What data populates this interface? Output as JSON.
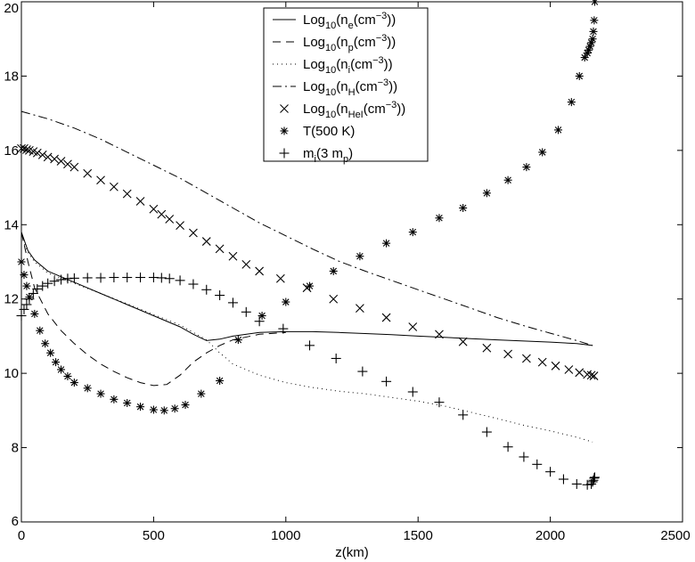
{
  "chart_data": {
    "type": "line",
    "title": "",
    "xlabel": "z(km)",
    "ylabel": "",
    "xlim": [
      0,
      2500
    ],
    "ylim": [
      6,
      20
    ],
    "xticks": [
      0,
      500,
      1000,
      1500,
      2000,
      2500
    ],
    "yticks": [
      6,
      8,
      10,
      12,
      14,
      16,
      18,
      20
    ],
    "grid": false,
    "legend_position": "top-center",
    "series": [
      {
        "name": "Log10(ne(cm-3))",
        "legend": {
          "base": "Log",
          "sub1": "10",
          "mid": "(n",
          "sub2": "e",
          "unit": "(cm",
          "sup": "−3",
          "close": "))"
        },
        "style": "solid",
        "marker": "none",
        "x": [
          0,
          25,
          50,
          100,
          200,
          300,
          400,
          500,
          600,
          650,
          700,
          750,
          800,
          900,
          1000,
          1100,
          1200,
          1300,
          1400,
          1500,
          1600,
          1700,
          1800,
          1900,
          2000,
          2100,
          2160
        ],
        "y": [
          13.8,
          13.3,
          13.05,
          12.75,
          12.45,
          12.15,
          11.85,
          11.55,
          11.25,
          11.05,
          10.88,
          10.92,
          11.0,
          11.1,
          11.12,
          11.12,
          11.1,
          11.07,
          11.04,
          11.0,
          10.97,
          10.93,
          10.9,
          10.87,
          10.84,
          10.8,
          10.75
        ]
      },
      {
        "name": "Log10(np(cm-3))",
        "legend": {
          "base": "Log",
          "sub1": "10",
          "mid": "(n",
          "sub2": "p",
          "unit": "(cm",
          "sup": "−3",
          "close": "))"
        },
        "style": "dashed",
        "marker": "none",
        "x": [
          0,
          25,
          50,
          100,
          150,
          200,
          250,
          300,
          350,
          400,
          450,
          500,
          550,
          600,
          650,
          700,
          750,
          800,
          900,
          1000
        ],
        "y": [
          13.8,
          13.0,
          12.3,
          11.6,
          11.15,
          10.8,
          10.5,
          10.25,
          10.05,
          9.88,
          9.75,
          9.67,
          9.7,
          9.95,
          10.3,
          10.55,
          10.75,
          10.9,
          11.05,
          11.1
        ]
      },
      {
        "name": "Log10(ni(cm-3))",
        "legend": {
          "base": "Log",
          "sub1": "10",
          "mid": "(n",
          "sub2": "i",
          "unit": "(cm",
          "sup": "−3",
          "close": "))"
        },
        "style": "dotted",
        "marker": "none",
        "x": [
          0,
          25,
          50,
          100,
          200,
          300,
          400,
          500,
          600,
          650,
          700,
          750,
          800,
          900,
          1000,
          1100,
          1200,
          1300,
          1400,
          1500,
          1600,
          1700,
          1800,
          1900,
          2000,
          2100,
          2160
        ],
        "y": [
          13.7,
          13.25,
          13.0,
          12.7,
          12.42,
          12.15,
          11.87,
          11.58,
          11.3,
          11.1,
          10.9,
          10.55,
          10.25,
          9.95,
          9.75,
          9.62,
          9.52,
          9.45,
          9.35,
          9.25,
          9.12,
          8.95,
          8.78,
          8.6,
          8.45,
          8.28,
          8.15
        ]
      },
      {
        "name": "Log10(nH(cm-3))",
        "legend": {
          "base": "Log",
          "sub1": "10",
          "mid": "(n",
          "sub2": "H",
          "unit": "(cm",
          "sup": "−3",
          "close": "))"
        },
        "style": "dashdot",
        "marker": "none",
        "x": [
          0,
          100,
          200,
          300,
          400,
          500,
          600,
          700,
          800,
          900,
          1000,
          1100,
          1200,
          1300,
          1400,
          1500,
          1600,
          1700,
          1800,
          1900,
          2000,
          2100,
          2160
        ],
        "y": [
          17.05,
          16.85,
          16.6,
          16.3,
          15.95,
          15.6,
          15.25,
          14.85,
          14.45,
          14.05,
          13.7,
          13.35,
          13.02,
          12.75,
          12.5,
          12.25,
          12.0,
          11.75,
          11.5,
          11.28,
          11.08,
          10.88,
          10.75
        ]
      },
      {
        "name": "Log10(nHeI(cm-3))",
        "legend": {
          "base": "Log",
          "sub1": "10",
          "mid": "(n",
          "sub2": "HeI",
          "unit": "(cm",
          "sup": "−3",
          "close": "))"
        },
        "style": "none",
        "marker": "x",
        "x": [
          0,
          10,
          20,
          30,
          45,
          60,
          80,
          100,
          125,
          150,
          175,
          200,
          250,
          300,
          350,
          400,
          450,
          500,
          530,
          560,
          600,
          650,
          700,
          750,
          800,
          850,
          900,
          980,
          1080,
          1180,
          1280,
          1380,
          1480,
          1580,
          1670,
          1760,
          1840,
          1910,
          1970,
          2020,
          2070,
          2110,
          2140,
          2155,
          2165
        ],
        "y": [
          16.05,
          16.05,
          16.02,
          16.0,
          15.97,
          15.93,
          15.88,
          15.82,
          15.77,
          15.71,
          15.63,
          15.55,
          15.38,
          15.2,
          15.02,
          14.83,
          14.63,
          14.42,
          14.28,
          14.15,
          13.98,
          13.78,
          13.55,
          13.35,
          13.15,
          12.93,
          12.75,
          12.55,
          12.3,
          12.0,
          11.75,
          11.5,
          11.25,
          11.05,
          10.85,
          10.68,
          10.52,
          10.4,
          10.3,
          10.2,
          10.1,
          10.02,
          9.97,
          9.95,
          9.93
        ]
      },
      {
        "name": "T(500 K)",
        "legend": {
          "text": "T(500 K)"
        },
        "style": "none",
        "marker": "asterisk",
        "x": [
          0,
          10,
          20,
          30,
          50,
          70,
          90,
          110,
          130,
          150,
          175,
          200,
          250,
          300,
          350,
          400,
          450,
          500,
          540,
          580,
          620,
          680,
          750,
          820,
          910,
          1000,
          1090,
          1180,
          1280,
          1380,
          1480,
          1580,
          1670,
          1760,
          1840,
          1910,
          1970,
          2030,
          2080,
          2110,
          2130,
          2140,
          2145,
          2150,
          2155,
          2160,
          2163,
          2166,
          2168
        ],
        "y": [
          13.0,
          12.65,
          12.35,
          12.05,
          11.6,
          11.15,
          10.8,
          10.55,
          10.3,
          10.1,
          9.92,
          9.75,
          9.6,
          9.45,
          9.3,
          9.2,
          9.1,
          9.02,
          9.0,
          9.05,
          9.15,
          9.45,
          9.8,
          10.9,
          11.55,
          11.92,
          12.35,
          12.75,
          13.15,
          13.5,
          13.8,
          14.18,
          14.45,
          14.85,
          15.2,
          15.55,
          15.95,
          16.55,
          17.3,
          18.0,
          18.5,
          18.62,
          18.7,
          18.8,
          18.9,
          19.0,
          19.2,
          19.5,
          20.0
        ]
      },
      {
        "name": "mi(3 mp)",
        "legend": {
          "base": "m",
          "sub1": "i",
          "mid": "(3 m",
          "sub2": "p",
          "close": ")"
        },
        "style": "none",
        "marker": "plus",
        "x": [
          0,
          10,
          20,
          30,
          45,
          60,
          80,
          100,
          125,
          150,
          175,
          200,
          250,
          300,
          350,
          400,
          450,
          500,
          530,
          560,
          600,
          650,
          700,
          750,
          800,
          850,
          900,
          990,
          1090,
          1190,
          1290,
          1380,
          1480,
          1580,
          1670,
          1760,
          1840,
          1900,
          1950,
          2000,
          2050,
          2100,
          2140,
          2155,
          2160,
          2163,
          2166,
          2168
        ],
        "y": [
          11.55,
          11.72,
          11.85,
          12.0,
          12.15,
          12.27,
          12.35,
          12.42,
          12.48,
          12.52,
          12.55,
          12.56,
          12.57,
          12.57,
          12.58,
          12.58,
          12.58,
          12.58,
          12.57,
          12.55,
          12.5,
          12.4,
          12.25,
          12.1,
          11.9,
          11.65,
          11.4,
          11.2,
          10.75,
          10.4,
          10.05,
          9.78,
          9.5,
          9.22,
          8.88,
          8.42,
          8.02,
          7.75,
          7.55,
          7.35,
          7.15,
          7.02,
          7.0,
          7.02,
          7.08,
          7.12,
          7.18,
          7.2
        ]
      }
    ]
  }
}
